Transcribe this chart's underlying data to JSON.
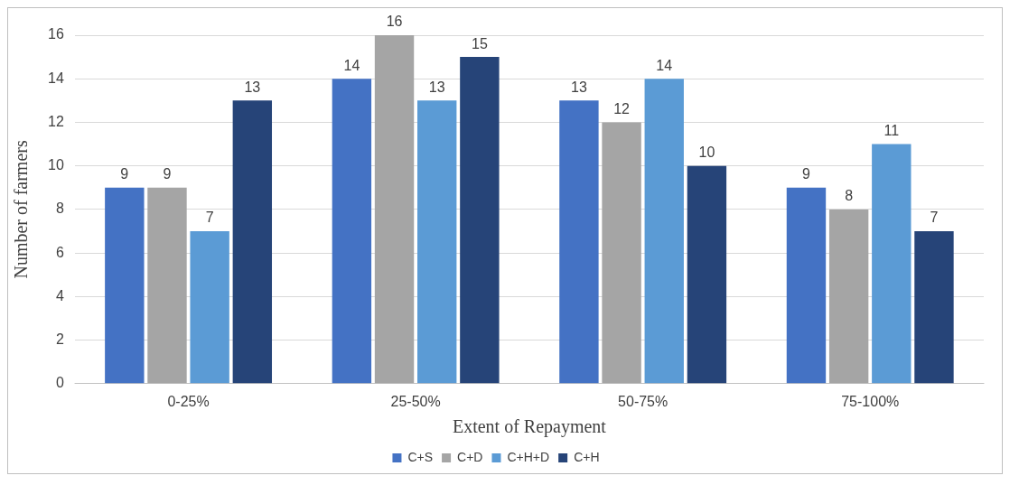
{
  "chart_data": {
    "type": "bar",
    "xlabel": "Extent of Repayment",
    "ylabel": "Number of farmers",
    "categories": [
      "0-25%",
      "25-50%",
      "50-75%",
      "75-100%"
    ],
    "series": [
      {
        "name": "C+S",
        "color": "#4472c4",
        "values": [
          9,
          14,
          13,
          9
        ]
      },
      {
        "name": "C+D",
        "color": "#a5a5a5",
        "values": [
          9,
          16,
          12,
          8
        ]
      },
      {
        "name": "C+H+D",
        "color": "#5b9bd5",
        "values": [
          7,
          13,
          14,
          11
        ]
      },
      {
        "name": "C+H",
        "color": "#264478",
        "values": [
          13,
          15,
          10,
          7
        ]
      }
    ],
    "ylim": [
      0,
      16
    ],
    "yticks": [
      0,
      2,
      4,
      6,
      8,
      10,
      12,
      14,
      16
    ],
    "grid": "y",
    "legend": "bottom",
    "data_labels": true
  }
}
